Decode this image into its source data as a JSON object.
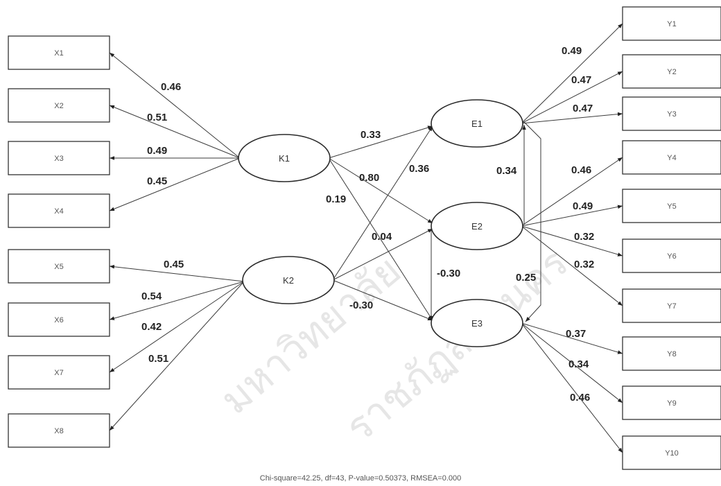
{
  "observed_left": [
    {
      "id": "X1",
      "label": "X1"
    },
    {
      "id": "X2",
      "label": "X2"
    },
    {
      "id": "X3",
      "label": "X3"
    },
    {
      "id": "X4",
      "label": "X4"
    },
    {
      "id": "X5",
      "label": "X5"
    },
    {
      "id": "X6",
      "label": "X6"
    },
    {
      "id": "X7",
      "label": "X7"
    },
    {
      "id": "X8",
      "label": "X8"
    }
  ],
  "observed_right": [
    {
      "id": "Y1",
      "label": "Y1"
    },
    {
      "id": "Y2",
      "label": "Y2"
    },
    {
      "id": "Y3",
      "label": "Y3"
    },
    {
      "id": "Y4",
      "label": "Y4"
    },
    {
      "id": "Y5",
      "label": "Y5"
    },
    {
      "id": "Y6",
      "label": "Y6"
    },
    {
      "id": "Y7",
      "label": "Y7"
    },
    {
      "id": "Y8",
      "label": "Y8"
    },
    {
      "id": "Y9",
      "label": "Y9"
    },
    {
      "id": "Y10",
      "label": "Y10"
    }
  ],
  "latent": [
    {
      "id": "K1",
      "label": "K1"
    },
    {
      "id": "K2",
      "label": "K2"
    },
    {
      "id": "E1",
      "label": "E1"
    },
    {
      "id": "E2",
      "label": "E2"
    },
    {
      "id": "E3",
      "label": "E3"
    }
  ],
  "paths": [
    {
      "from": "K1",
      "to": "X1",
      "coef": "0.46"
    },
    {
      "from": "K1",
      "to": "X2",
      "coef": "0.51"
    },
    {
      "from": "K1",
      "to": "X3",
      "coef": "0.49"
    },
    {
      "from": "K1",
      "to": "X4",
      "coef": "0.45"
    },
    {
      "from": "K2",
      "to": "X5",
      "coef": "0.45"
    },
    {
      "from": "K2",
      "to": "X6",
      "coef": "0.54"
    },
    {
      "from": "K2",
      "to": "X7",
      "coef": "0.42"
    },
    {
      "from": "K2",
      "to": "X8",
      "coef": "0.51"
    },
    {
      "from": "E1",
      "to": "Y1",
      "coef": "0.49"
    },
    {
      "from": "E1",
      "to": "Y2",
      "coef": "0.47"
    },
    {
      "from": "E1",
      "to": "Y3",
      "coef": "0.47"
    },
    {
      "from": "E2",
      "to": "Y4",
      "coef": "0.46"
    },
    {
      "from": "E2",
      "to": "Y5",
      "coef": "0.49"
    },
    {
      "from": "E2",
      "to": "Y6",
      "coef": "0.32"
    },
    {
      "from": "E2",
      "to": "Y7",
      "coef": "0.32"
    },
    {
      "from": "E3",
      "to": "Y8",
      "coef": "0.37"
    },
    {
      "from": "E3",
      "to": "Y9",
      "coef": "0.34"
    },
    {
      "from": "E3",
      "to": "Y10",
      "coef": "0.46"
    },
    {
      "from": "K1",
      "to": "E1",
      "coef": "0.33"
    },
    {
      "from": "K1",
      "to": "E2",
      "coef": "0.80"
    },
    {
      "from": "K1",
      "to": "E3",
      "coef": "0.19"
    },
    {
      "from": "K2",
      "to": "E1",
      "coef": "0.36"
    },
    {
      "from": "K2",
      "to": "E2",
      "coef": "0.04"
    },
    {
      "from": "K2",
      "to": "E3",
      "coef": "-0.30"
    },
    {
      "from": "E2",
      "to": "E1",
      "coef": "0.34"
    },
    {
      "from": "E2",
      "to": "E3",
      "coef": "-0.30"
    },
    {
      "from": "E1",
      "to": "E3",
      "coef": "0.25"
    }
  ],
  "fit_stats": "Chi-square=42.25,  df=43,  P-value=0.50373,  RMSEA=0.000",
  "watermark": [
    "มหาวิทยาลัย",
    "ราชภัฏสกลนคร"
  ]
}
